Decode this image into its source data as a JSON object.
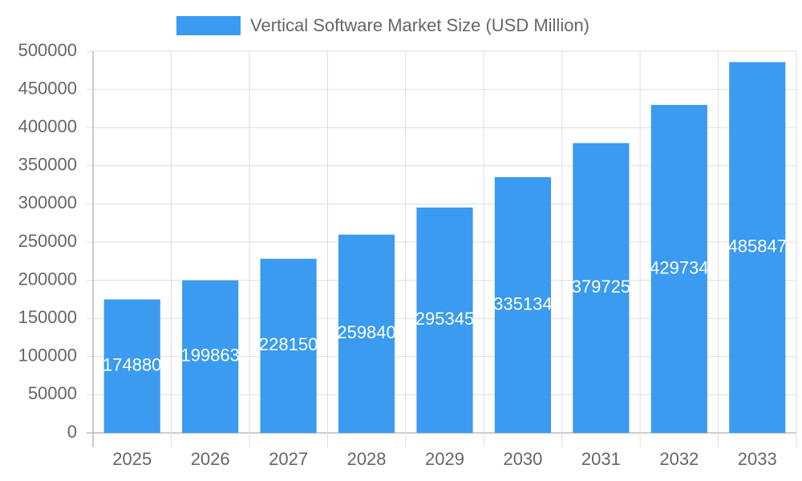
{
  "chart_data": {
    "type": "bar",
    "series": [
      {
        "name": "Vertical Software Market Size (USD Million)",
        "color": "#3a9bf0",
        "values": [
          174880,
          199863,
          228150,
          259840,
          295345,
          335134,
          379725,
          429734,
          485847
        ]
      }
    ],
    "categories": [
      "2025",
      "2026",
      "2027",
      "2028",
      "2029",
      "2030",
      "2031",
      "2032",
      "2033"
    ],
    "ylim": [
      0,
      500000
    ],
    "yticks": [
      0,
      50000,
      100000,
      150000,
      200000,
      250000,
      300000,
      350000,
      400000,
      450000,
      500000
    ],
    "grid": true,
    "legend": "top",
    "data_labels": true
  }
}
